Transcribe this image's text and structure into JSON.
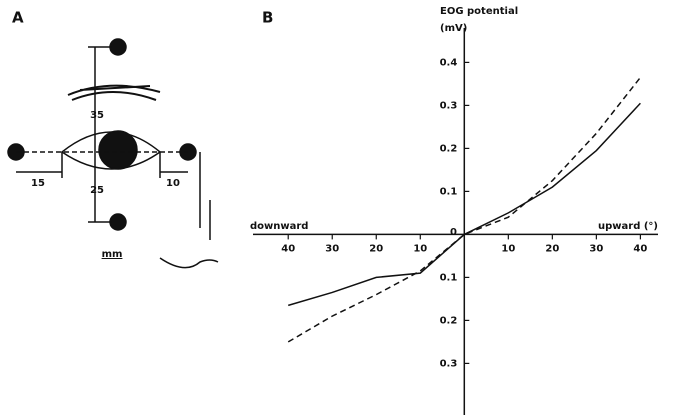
{
  "panel_a": {
    "letter": "A",
    "labels": [
      "35",
      "25",
      "15",
      "10"
    ],
    "unit": "mm"
  },
  "chart_data": {
    "type": "line",
    "panel_letter": "B",
    "y_label": "EOG potential",
    "y_unit": "(mV)",
    "x_label_left": "downward",
    "x_label_right": "upward (°)",
    "origin_label": "0",
    "x": [
      -40,
      -30,
      -20,
      -10,
      0,
      10,
      20,
      30,
      40
    ],
    "series": [
      {
        "color": "#111111",
        "dash": false,
        "values": [
          -0.165,
          -0.135,
          -0.1,
          -0.09,
          0,
          0.05,
          0.11,
          0.195,
          0.305
        ]
      },
      {
        "color": "#111111",
        "dash": true,
        "values": [
          -0.25,
          -0.19,
          -0.14,
          -0.085,
          0,
          0.04,
          0.125,
          0.235,
          0.365
        ]
      }
    ],
    "xlim": [
      -48,
      44
    ],
    "ylim": [
      -0.42,
      0.48
    ],
    "xticks": [
      {
        "value": -40,
        "label": "40"
      },
      {
        "value": -30,
        "label": "30"
      },
      {
        "value": -20,
        "label": "20"
      },
      {
        "value": -10,
        "label": "10"
      },
      10,
      20,
      30,
      40
    ],
    "yticks": [
      {
        "value": -0.3,
        "label": "0.3"
      },
      {
        "value": -0.2,
        "label": "0.2"
      },
      {
        "value": -0.1,
        "label": "0.1"
      },
      0.1,
      0.2,
      0.3,
      0.4
    ]
  }
}
